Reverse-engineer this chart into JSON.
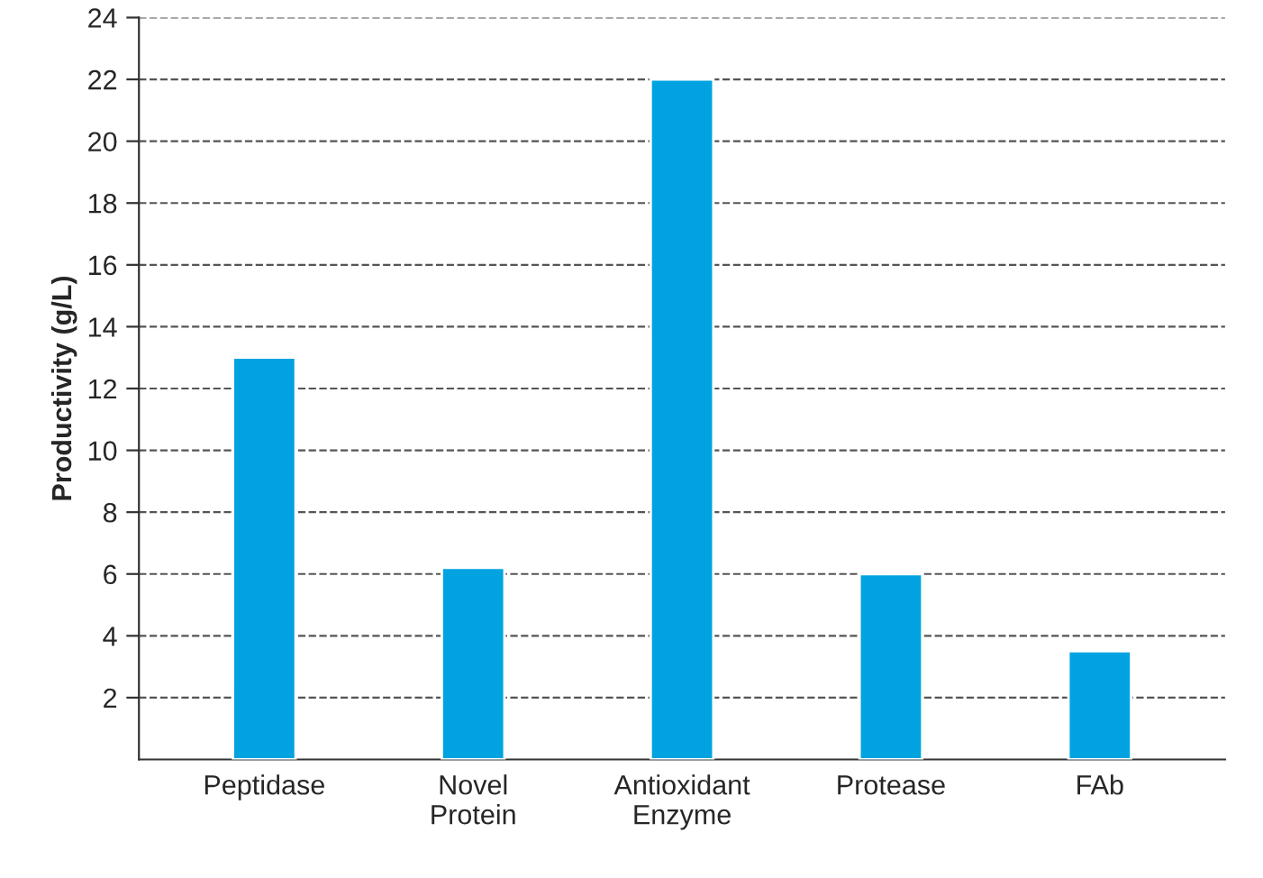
{
  "chart_data": {
    "type": "bar",
    "ylabel": "Productivity (g/L)",
    "categories": [
      "Peptidase",
      "Novel\nProtein",
      "Antioxidant\nEnzyme",
      "Protease",
      "FAb"
    ],
    "values": [
      13,
      6.2,
      22,
      6,
      3.5
    ],
    "color": "#00a3e0",
    "ylim": [
      0,
      24
    ],
    "yticks": [
      2,
      4,
      6,
      8,
      10,
      12,
      14,
      16,
      18,
      20,
      22,
      24
    ],
    "grid": "y",
    "line_style": "dashed"
  }
}
